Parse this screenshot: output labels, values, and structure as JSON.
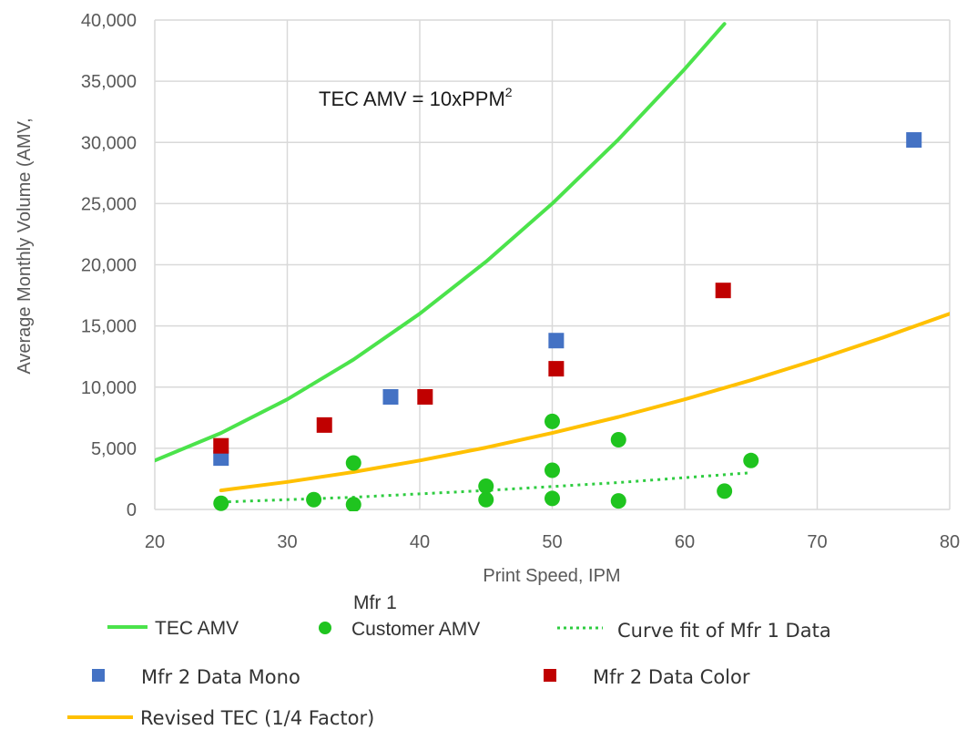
{
  "chart_data": {
    "type": "scatter",
    "xlabel": "Print Speed, IPM",
    "ylabel": "Average Monthly Volume (AMV,",
    "xlim": [
      20,
      80
    ],
    "ylim": [
      0,
      40000
    ],
    "x_ticks": [
      "20",
      "30",
      "40",
      "50",
      "60",
      "70",
      "80"
    ],
    "y_ticks": [
      "0",
      "5,000",
      "10,000",
      "15,000",
      "20,000",
      "25,000",
      "30,000",
      "35,000",
      "40,000"
    ],
    "grid": true,
    "annotation": {
      "text": "TEC AMV = 10xPPM",
      "superscript": "2"
    },
    "colors": {
      "tec": "#4be34b",
      "customer": "#1fc41f",
      "fit": "#2ecc40",
      "mono": "#4472c4",
      "color": "#c00000",
      "revised": "#ffc000",
      "grid": "#d9d9d9"
    },
    "series": [
      {
        "name": "TEC AMV",
        "kind": "line",
        "color": "#4be34b",
        "x": [
          20,
          25,
          30,
          35,
          40,
          45,
          50,
          55,
          60,
          63
        ],
        "y": [
          4000,
          6250,
          9000,
          12250,
          16000,
          20250,
          25000,
          30250,
          36000,
          39690
        ]
      },
      {
        "name": "Customer AMV",
        "group_label": "Mfr 1",
        "kind": "scatter",
        "color": "#1fc41f",
        "x": [
          25,
          32,
          35,
          35,
          45,
          45,
          50,
          50,
          50,
          55,
          55,
          63,
          65
        ],
        "y": [
          500,
          800,
          400,
          3800,
          800,
          1900,
          7200,
          3200,
          900,
          700,
          5700,
          1500,
          4000
        ]
      },
      {
        "name": "Curve fit of Mfr 1 Data",
        "kind": "dotted-line",
        "color": "#2ecc40",
        "x": [
          25,
          35,
          45,
          55,
          65
        ],
        "y": [
          600,
          1000,
          1550,
          2200,
          3000
        ]
      },
      {
        "name": "Mfr 2 Data Mono",
        "kind": "square",
        "color": "#4472c4",
        "x": [
          25,
          37.8,
          50.3,
          77.3
        ],
        "y": [
          4200,
          9200,
          13800,
          30200
        ]
      },
      {
        "name": "Mfr 2 Data Color",
        "kind": "square",
        "color": "#c00000",
        "x": [
          25,
          32.8,
          40.4,
          50.3,
          62.9
        ],
        "y": [
          5200,
          6900,
          9200,
          11500,
          17900
        ]
      },
      {
        "name": "Revised TEC (1/4 Factor)",
        "kind": "line",
        "color": "#ffc000",
        "x": [
          25,
          30,
          35,
          40,
          45,
          50,
          55,
          60,
          65,
          70,
          75,
          80
        ],
        "y": [
          1560,
          2250,
          3060,
          4000,
          5060,
          6250,
          7560,
          9000,
          10560,
          12250,
          14060,
          16000
        ]
      }
    ]
  }
}
